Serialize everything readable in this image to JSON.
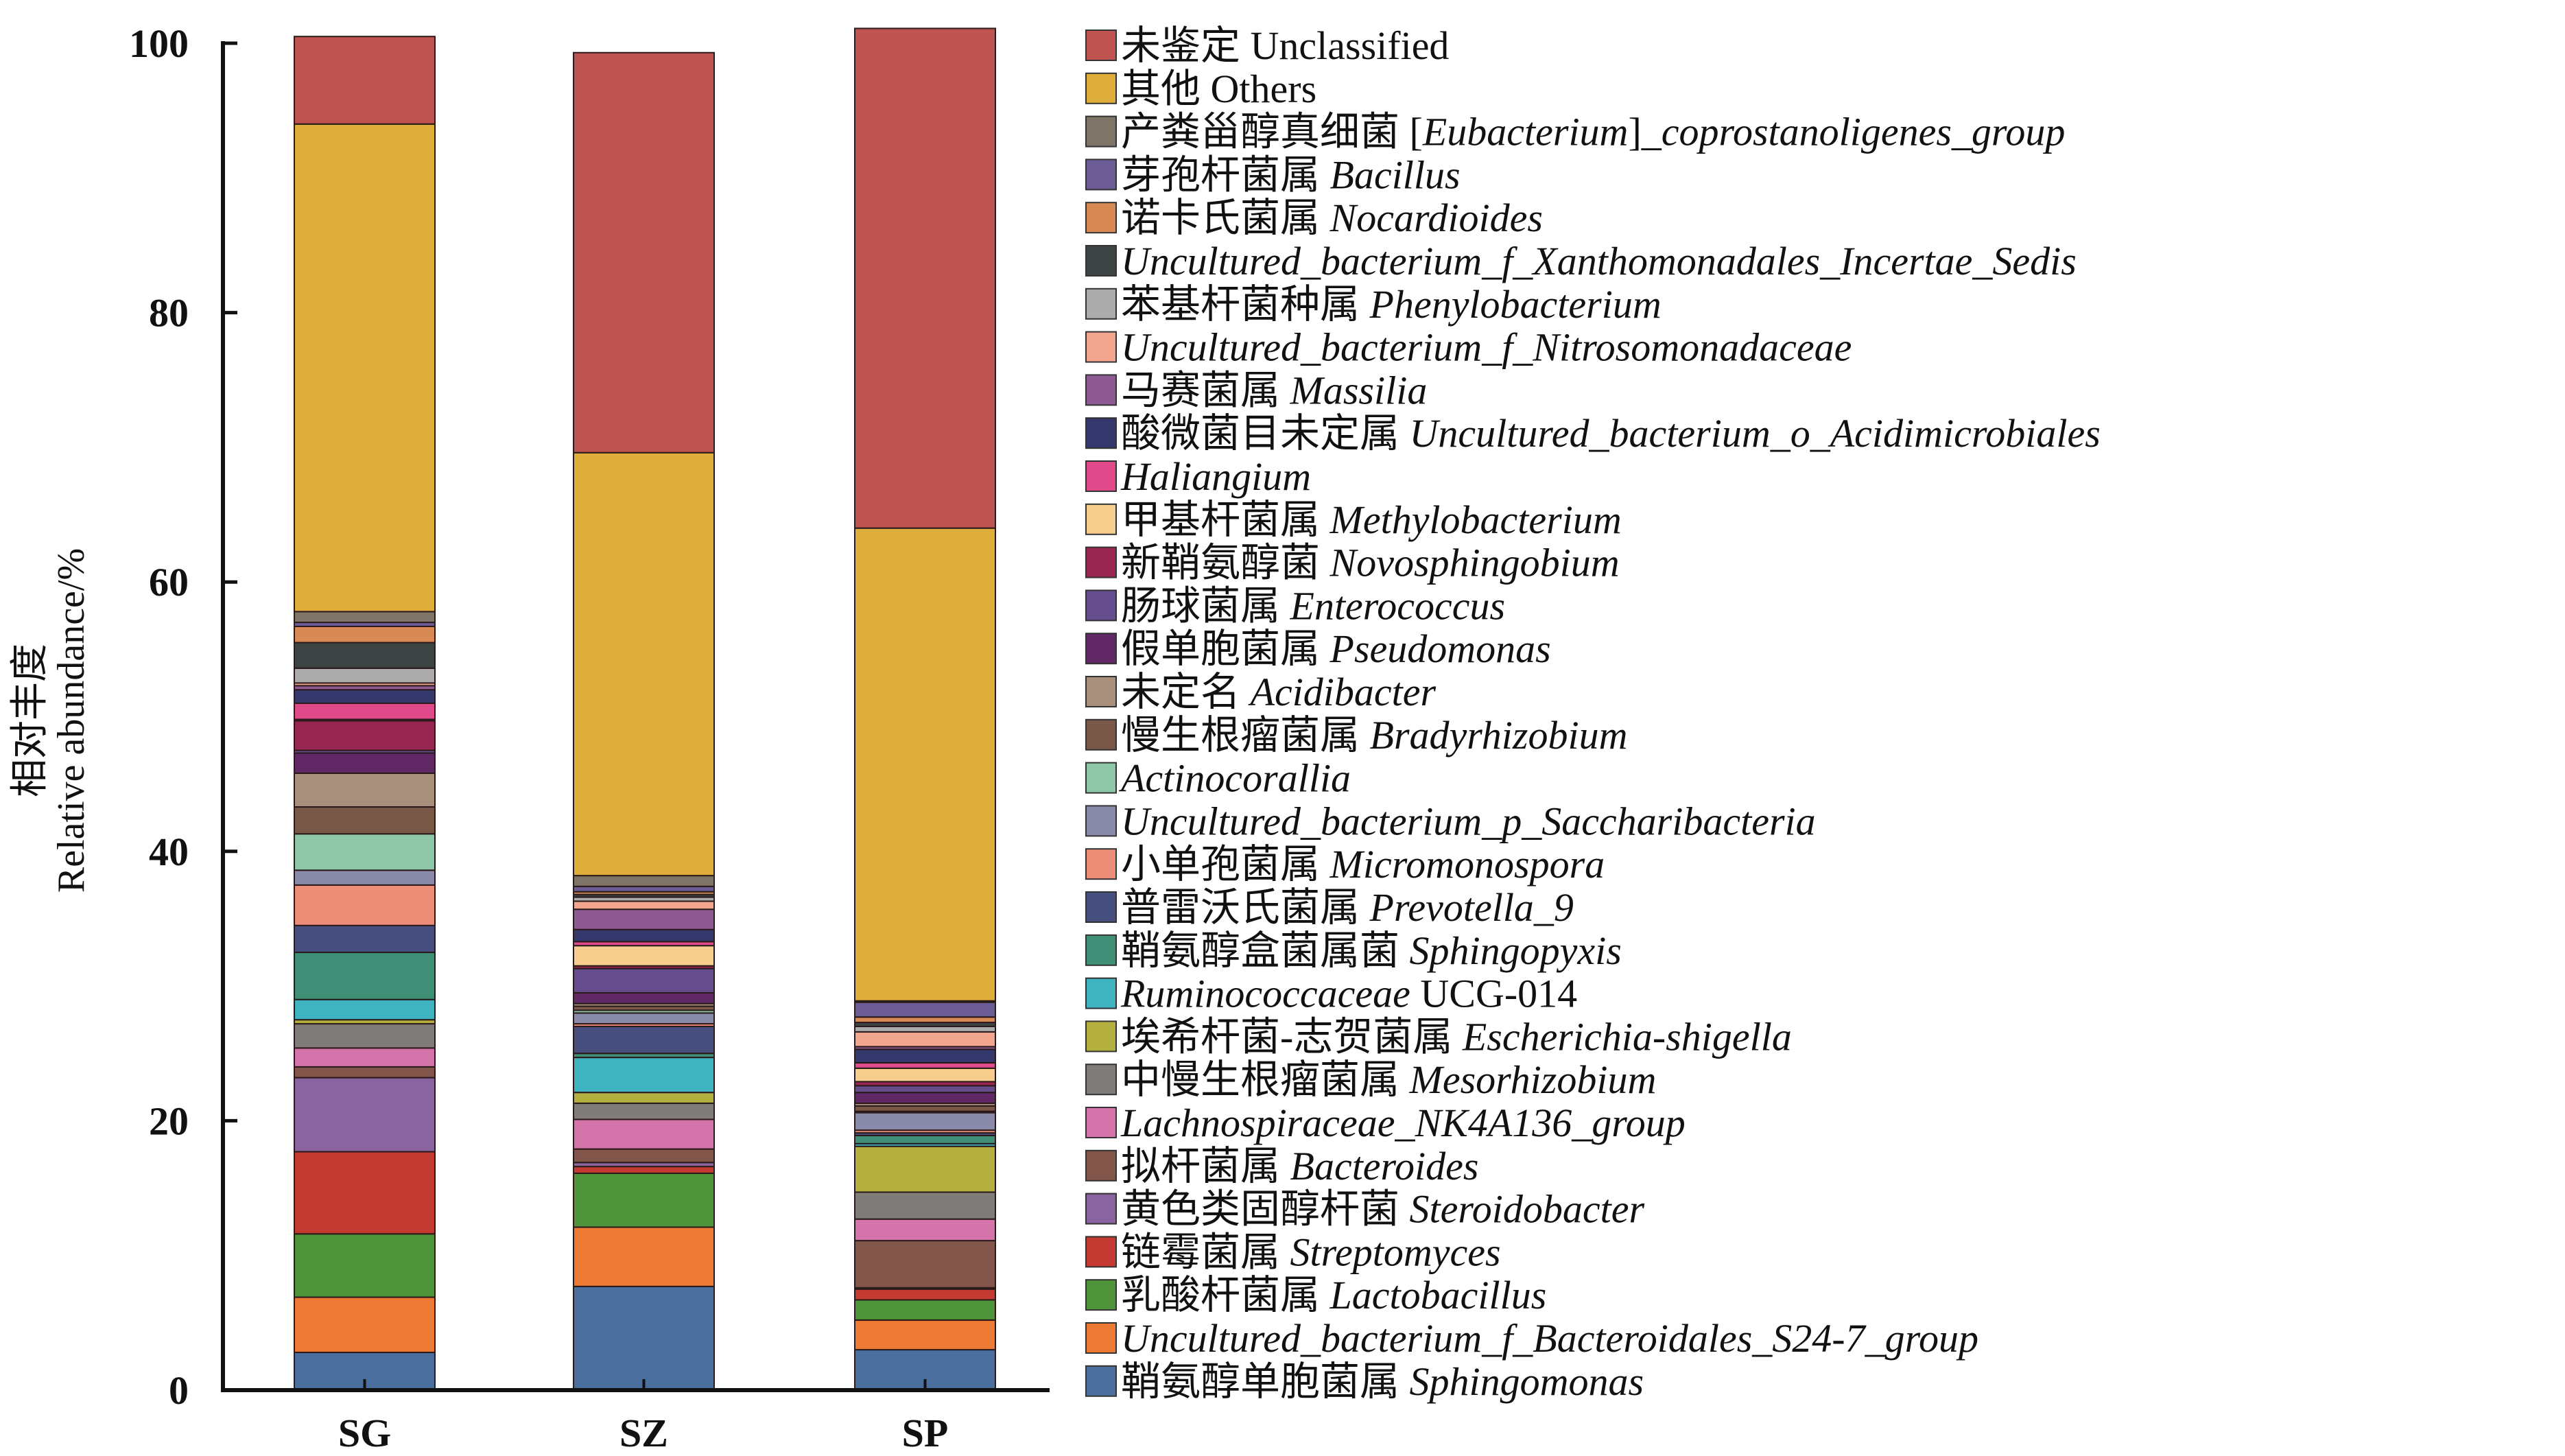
{
  "chart_data": {
    "type": "bar",
    "stacked": true,
    "title": "",
    "xlabel": "",
    "ylabel_cn": "相对丰度",
    "ylabel": "Relative abundance/%",
    "ylim": [
      0,
      100
    ],
    "yticks": [
      0,
      20,
      40,
      60,
      80,
      100
    ],
    "grid": false,
    "legend_position": "right",
    "categories": [
      "SG",
      "SZ",
      "SP"
    ],
    "series": [
      {
        "name": "Sphingomonas",
        "cn": "鞘氨醇单胞菌属",
        "latin": "Sphingomonas",
        "plain": "",
        "color": "#4a6e9e",
        "values": [
          2.8,
          7.7,
          3.0
        ]
      },
      {
        "name": "Uncultured_bacterium_f_Bacteroidales_S24-7_group",
        "cn": "",
        "latin": "Uncultured_bacterium_f_Bacteroidales_S24-7_group",
        "plain": "",
        "color": "#ec7a35",
        "values": [
          4.1,
          4.4,
          2.2
        ]
      },
      {
        "name": "Lactobacillus",
        "cn": "乳酸杆菌属",
        "latin": "Lactobacillus",
        "plain": "",
        "color": "#4f943a",
        "values": [
          4.7,
          4.0,
          1.5
        ]
      },
      {
        "name": "Streptomyces",
        "cn": "链霉菌属",
        "latin": "Streptomyces",
        "plain": "",
        "color": "#c43a33",
        "values": [
          6.1,
          0.5,
          0.8
        ]
      },
      {
        "name": "Steroidobacter",
        "cn": "黄色类固醇杆菌",
        "latin": "Steroidobacter",
        "plain": "",
        "color": "#8a649e",
        "values": [
          5.5,
          0.3,
          0.1
        ]
      },
      {
        "name": "Bacteroides",
        "cn": "拟杆菌属",
        "latin": "Bacteroides",
        "plain": "",
        "color": "#82564a",
        "values": [
          0.8,
          1.0,
          3.5
        ]
      },
      {
        "name": "Lachnospiraceae_NK4A136_group",
        "cn": "",
        "latin": "Lachnospiraceae_NK4A136_group",
        "plain": "",
        "color": "#d474aa",
        "values": [
          1.4,
          2.2,
          1.6
        ]
      },
      {
        "name": "Mesorhizobium",
        "cn": "中慢生根瘤菌属",
        "latin": "Mesorhizobium",
        "plain": "",
        "color": "#807c7a",
        "values": [
          1.8,
          1.2,
          2.0
        ]
      },
      {
        "name": "Escherichia-shigella",
        "cn": "埃希杆菌-志贺菌属",
        "latin": "Escherichia-shigella",
        "plain": "",
        "color": "#b3b03f",
        "values": [
          0.3,
          0.8,
          3.4
        ]
      },
      {
        "name": "Ruminococcaceae UCG-014",
        "cn": "",
        "latin": "Ruminococcaceae",
        "plain": " UCG-014",
        "color": "#3fb3c0",
        "values": [
          1.5,
          2.6,
          0.2
        ]
      },
      {
        "name": "Sphingopyxis",
        "cn": "鞘氨醇盒菌属菌",
        "latin": "Sphingopyxis",
        "plain": "",
        "color": "#3e8f75",
        "values": [
          3.5,
          0.3,
          0.6
        ]
      },
      {
        "name": "Prevotella_9",
        "cn": "普雷沃氏菌属",
        "latin": "Prevotella_9",
        "plain": "",
        "color": "#474f7e",
        "values": [
          2.0,
          2.0,
          0.2
        ]
      },
      {
        "name": "Micromonospora",
        "cn": "小单孢菌属",
        "latin": "Micromonospora",
        "plain": "",
        "color": "#ec8e78",
        "values": [
          3.0,
          0.2,
          0.2
        ]
      },
      {
        "name": "Uncultured_bacterium_p_Saccharibacteria",
        "cn": "",
        "latin": "Uncultured_bacterium_p_Saccharibacteria",
        "plain": "",
        "color": "#8a8aaa",
        "values": [
          1.1,
          0.8,
          1.3
        ]
      },
      {
        "name": "Actinocorallia",
        "cn": "",
        "latin": "Actinocorallia",
        "plain": "",
        "color": "#8ec6a8",
        "values": [
          2.7,
          0.2,
          0.1
        ]
      },
      {
        "name": "Bradyrhizobium",
        "cn": "慢生根瘤菌属",
        "latin": "Bradyrhizobium",
        "plain": "",
        "color": "#7a5848",
        "values": [
          2.0,
          0.3,
          0.4
        ]
      },
      {
        "name": "Acidibacter",
        "cn": "未定名",
        "latin": "Acidibacter",
        "plain": "",
        "color": "#a8907c",
        "values": [
          2.5,
          0.2,
          0.2
        ]
      },
      {
        "name": "Pseudomonas",
        "cn": "假单胞菌属",
        "latin": "Pseudomonas",
        "plain": "",
        "color": "#602864",
        "values": [
          1.5,
          0.8,
          0.8
        ]
      },
      {
        "name": "Enterococcus",
        "cn": "肠球菌属",
        "latin": "Enterococcus",
        "plain": "",
        "color": "#654d8e",
        "values": [
          0.2,
          1.8,
          0.5
        ]
      },
      {
        "name": "Novosphingobium",
        "cn": "新鞘氨醇菌",
        "latin": "Novosphingobium",
        "plain": "",
        "color": "#982650",
        "values": [
          2.2,
          0.2,
          0.3
        ]
      },
      {
        "name": "Methylobacterium",
        "cn": "甲基杆菌属",
        "latin": "Methylobacterium",
        "plain": "",
        "color": "#f6cd8c",
        "values": [
          0.1,
          1.5,
          1.0
        ]
      },
      {
        "name": "Haliangium",
        "cn": "",
        "latin": "Haliangium",
        "plain": "",
        "color": "#e04a8a",
        "values": [
          1.2,
          0.3,
          0.4
        ]
      },
      {
        "name": "Uncultured_bacterium_o_Acidimicrobiales",
        "cn": "酸微菌目未定属",
        "latin": "Uncultured_bacterium_o_Acidimicrobiales",
        "plain": "",
        "color": "#34386c",
        "values": [
          1.0,
          0.9,
          1.0
        ]
      },
      {
        "name": "Massilia",
        "cn": "马赛菌属",
        "latin": "Massilia",
        "plain": "",
        "color": "#8f5a94",
        "values": [
          0.3,
          1.5,
          0.2
        ]
      },
      {
        "name": "Uncultured_bacterium_f_Nitrosomonadaceae",
        "cn": "",
        "latin": "Uncultured_bacterium_f_Nitrosomonadaceae",
        "plain": "",
        "color": "#f2a690",
        "values": [
          0.2,
          0.6,
          1.1
        ]
      },
      {
        "name": "Phenylobacterium",
        "cn": "苯基杆菌种属",
        "latin": "Phenylobacterium",
        "plain": "",
        "color": "#acacac",
        "values": [
          1.1,
          0.3,
          0.4
        ]
      },
      {
        "name": "Uncultured_bacterium_f_Xanthomonadales_Incertae_Sedis",
        "cn": "",
        "latin": "Uncultured_bacterium_f_Xanthomonadales_Incertae_Sedis",
        "plain": "",
        "color": "#3c4444",
        "values": [
          1.9,
          0.2,
          0.3
        ]
      },
      {
        "name": "Nocardioides",
        "cn": "诺卡氏菌属",
        "latin": "Nocardioides",
        "plain": "",
        "color": "#d98a54",
        "values": [
          1.2,
          0.2,
          0.4
        ]
      },
      {
        "name": "Bacillus",
        "cn": "芽孢杆菌属",
        "latin": "Bacillus",
        "plain": "",
        "color": "#6b5c96",
        "values": [
          0.3,
          0.4,
          1.1
        ]
      },
      {
        "name": "[Eubacterium]_coprostanoligenes_group",
        "cn": "产粪甾醇真细菌",
        "latin": "",
        "plain": "",
        "bracket": true,
        "color": "#7e7568",
        "values": [
          0.8,
          0.8,
          0.1
        ]
      },
      {
        "name": "Others",
        "cn": "其他",
        "latin": "",
        "plain": "Others",
        "color": "#dfad3b",
        "values": [
          36.2,
          31.4,
          35.1
        ]
      },
      {
        "name": "Unclassified",
        "cn": "未鉴定",
        "latin": "",
        "plain": "Unclassified",
        "color": "#bf5350",
        "values": [
          6.5,
          29.7,
          37.1
        ]
      }
    ]
  }
}
